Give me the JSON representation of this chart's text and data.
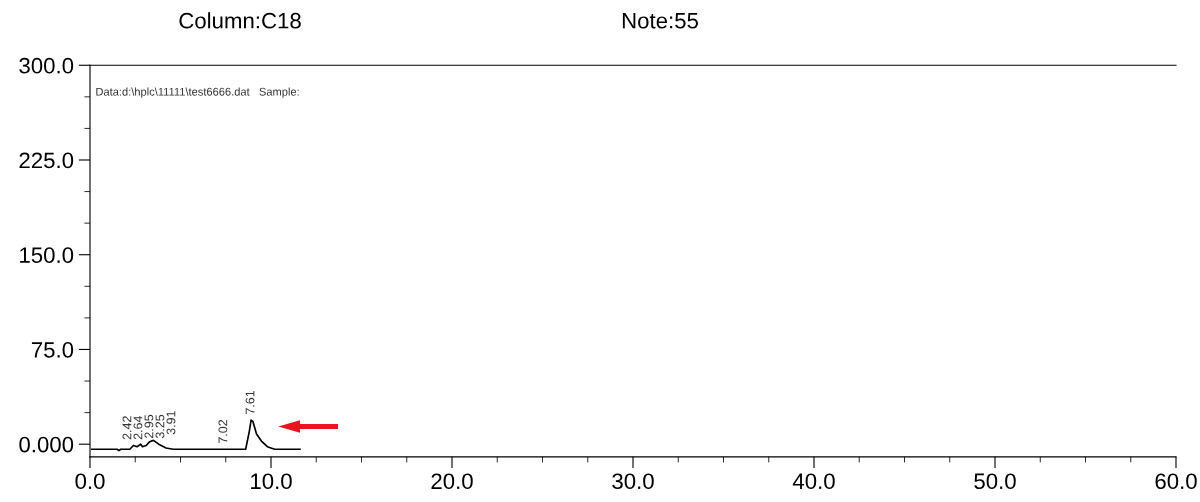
{
  "chart_data": {
    "type": "line",
    "title": "Column:C18",
    "subtitle": "Note:55",
    "x": [
      0.1,
      1.5,
      1.6,
      1.7,
      2.2,
      2.4,
      2.6,
      2.8,
      2.9,
      3.1,
      3.3,
      3.5,
      3.8,
      4.2,
      4.6,
      8.6,
      8.8,
      8.9,
      9.0,
      9.2,
      9.5,
      9.8,
      10.2,
      11.6
    ],
    "series": [
      {
        "color": "#000000",
        "values": [
          -4,
          -4,
          -5,
          -4,
          -4,
          -1,
          -2,
          0,
          -2,
          -1,
          2,
          3,
          0,
          -3,
          -4,
          -4,
          10,
          19,
          18,
          8,
          2,
          -2,
          -4,
          -4
        ]
      }
    ],
    "annotations": [
      "Data:d:\\hplc\\11111\\test6666.dat   Sample:",
      {
        "text": "2.42",
        "x": 2.1,
        "y": -1
      },
      {
        "text": "2.64",
        "x": 2.5,
        "y": -1
      },
      {
        "text": "2.95",
        "x": 2.8,
        "y": 0
      },
      {
        "text": "3.25",
        "x": 3.1,
        "y": 0
      },
      {
        "text": "3.91",
        "x": 3.6,
        "y": 3
      },
      {
        "text": "7.02",
        "x": 7.4,
        "y": -4
      },
      {
        "text": "7.61",
        "x": 8.9,
        "y": 19
      }
    ],
    "xlim": [
      0,
      60
    ],
    "ylim": [
      -10,
      300
    ],
    "xticks": [
      {
        "value": 0,
        "label": "0.0"
      },
      {
        "value": 10,
        "label": "10.0"
      },
      {
        "value": 20,
        "label": "20.0"
      },
      {
        "value": 30,
        "label": "30.0"
      },
      {
        "value": 40,
        "label": "40.0"
      },
      {
        "value": 50,
        "label": "50.0"
      },
      {
        "value": 60,
        "label": "60.0"
      }
    ],
    "yticks": [
      {
        "value": 0,
        "label": "0.000"
      },
      {
        "value": 75,
        "label": "75.0"
      },
      {
        "value": 150,
        "label": "150.0"
      },
      {
        "value": 225,
        "label": "225.0"
      },
      {
        "value": 300,
        "label": "300.0"
      }
    ],
    "grid": false,
    "legend": false,
    "marker": "none",
    "line_style": "solid"
  }
}
